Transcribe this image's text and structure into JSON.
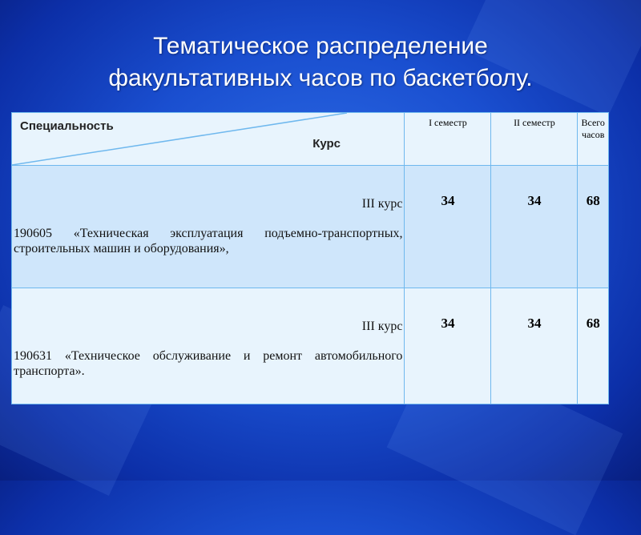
{
  "title": [
    "Тематическое распределение",
    "факультативных часов по баскетболу."
  ],
  "table": {
    "header": {
      "specialty": "Специальность",
      "course": "Курс",
      "cols": [
        "I семестр",
        "II семестр",
        "Всего часов"
      ]
    },
    "rows": [
      {
        "course": "III курс",
        "specialty": "190605 «Техническая эксплуатация подъемно-транспортных, строительных машин и оборудования»,",
        "values": [
          "34",
          "34",
          "68"
        ]
      },
      {
        "course": "III курс",
        "specialty": "190631 «Техническое обслуживание и ремонт автомобильного транспорта».",
        "values": [
          "34",
          "34",
          "68"
        ]
      }
    ]
  },
  "colors": {
    "background": "#1a4fd0",
    "header_row": "#e8f4fd",
    "row_highlight": "#cfe6fb",
    "border": "#6fb8ee"
  }
}
